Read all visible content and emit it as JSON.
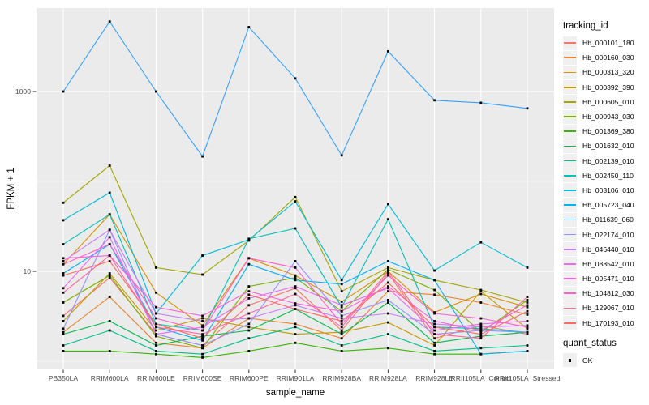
{
  "legend": {
    "tracking_title": "tracking_id",
    "quant_title": "quant_status",
    "quant_entries": [
      {
        "label": "OK"
      }
    ]
  },
  "colors": {
    "panel_background": "#EBEBEB",
    "gridline": "#FFFFFF",
    "tick_label": "#4D4D4D",
    "tick_mark": "#333333",
    "point": "#000000",
    "legend_key_background": "#F0F0F0"
  },
  "chart_data": {
    "type": "line",
    "title": "",
    "xlabel": "sample_name",
    "ylabel": "FPKM + 1",
    "y_scale": "log10",
    "grid": true,
    "legend_position": "right",
    "y_ticks": [
      1000,
      10
    ],
    "y_tick_labels": [
      "1000",
      "10"
    ],
    "y_minor_gridlines": [
      100,
      1
    ],
    "ylim": [
      0.85,
      8500
    ],
    "point_shape": "filled-black-square",
    "categories": [
      "PB350LA",
      "RRIM600LA",
      "RRIM600LE",
      "RRIM600SE",
      "RRIM600PE",
      "RRIM901LA",
      "RRIM928BA",
      "RRIM928LA",
      "RRIM928LE",
      "RRII105LA_Control",
      "RRII105LA_Stressed"
    ],
    "series": [
      {
        "name": "Hb_000101_180",
        "color": "#F8766D",
        "values": [
          3.2,
          8.5,
          2.0,
          1.5,
          4.2,
          6.5,
          2.2,
          9.5,
          1.8,
          2.5,
          2.0
        ]
      },
      {
        "name": "Hb_000160_030",
        "color": "#EA8331",
        "values": [
          2.1,
          5.2,
          1.6,
          1.4,
          3.0,
          2.6,
          1.8,
          6.0,
          5.5,
          4.5,
          3.3
        ]
      },
      {
        "name": "Hb_000313_320",
        "color": "#D89000",
        "values": [
          12,
          43,
          5.8,
          2.5,
          14,
          9.0,
          4.6,
          10,
          3.5,
          5.6,
          4.0
        ]
      },
      {
        "name": "Hb_000392_390",
        "color": "#C09B00",
        "values": [
          2.8,
          9.5,
          2.2,
          3.0,
          2.4,
          2.0,
          2.1,
          2.7,
          1.5,
          6.0,
          2.3
        ]
      },
      {
        "name": "Hb_000605_010",
        "color": "#A3A500",
        "values": [
          58,
          150,
          11,
          9.2,
          22,
          67,
          6.0,
          11,
          8.0,
          6.2,
          4.5
        ]
      },
      {
        "name": "Hb_000943_030",
        "color": "#7CAE00",
        "values": [
          4.5,
          9.0,
          1.9,
          1.4,
          6.8,
          8.5,
          3.6,
          10.5,
          6.2,
          2.1,
          4.8
        ]
      },
      {
        "name": "Hb_001369_380",
        "color": "#39B600",
        "values": [
          1.3,
          1.3,
          1.2,
          1.1,
          1.3,
          1.6,
          1.3,
          1.4,
          1.2,
          1.2,
          1.3
        ]
      },
      {
        "name": "Hb_001632_010",
        "color": "#00BB4E",
        "values": [
          2.0,
          2.8,
          1.5,
          1.9,
          2.2,
          3.8,
          2.0,
          4.5,
          1.6,
          1.9,
          2.1
        ]
      },
      {
        "name": "Hb_002139_010",
        "color": "#00C087",
        "values": [
          1.5,
          2.2,
          1.3,
          1.2,
          1.8,
          2.4,
          1.5,
          2.0,
          1.3,
          1.4,
          1.5
        ]
      },
      {
        "name": "Hb_002450_110",
        "color": "#00C0B8",
        "values": [
          20,
          43,
          2.6,
          2.2,
          23,
          30,
          4.0,
          38,
          2.4,
          2.3,
          2.1
        ]
      },
      {
        "name": "Hb_003106_010",
        "color": "#00BCD8",
        "values": [
          37,
          75,
          3.4,
          15,
          22.5,
          60,
          8.0,
          56,
          10.2,
          21,
          11
        ]
      },
      {
        "name": "Hb_005723_040",
        "color": "#00B0F6",
        "values": [
          9.5,
          20,
          2.4,
          1.7,
          12,
          8.0,
          7.2,
          13,
          8.0,
          1.2,
          1.3
        ]
      },
      {
        "name": "Hb_011639_060",
        "color": "#35A2FF",
        "values": [
          1000,
          6000,
          1000,
          190,
          5200,
          1400,
          195,
          2800,
          800,
          750,
          650
        ]
      },
      {
        "name": "Hb_022174_010",
        "color": "#9590FF",
        "values": [
          2.3,
          29,
          2.0,
          1.5,
          2.6,
          13,
          3.2,
          4.8,
          2.0,
          2.2,
          2.1
        ]
      },
      {
        "name": "Hb_046440_010",
        "color": "#C77CFF",
        "values": [
          13,
          29,
          3.4,
          2.8,
          3.0,
          4.2,
          3.0,
          3.4,
          2.6,
          2.4,
          2.5
        ]
      },
      {
        "name": "Hb_088542_010",
        "color": "#E76BF3",
        "values": [
          6.5,
          24,
          2.0,
          2.4,
          5.0,
          6.8,
          4.2,
          6.5,
          2.2,
          2.6,
          2.8
        ]
      },
      {
        "name": "Hb_095471_010",
        "color": "#FA62DB",
        "values": [
          14,
          15,
          4.0,
          3.2,
          6.0,
          4.4,
          3.6,
          6.8,
          2.8,
          2.2,
          4.2
        ]
      },
      {
        "name": "Hb_104812_030",
        "color": "#FF61C9",
        "values": [
          12,
          20,
          3.0,
          2.2,
          14,
          11,
          2.6,
          9.0,
          3.4,
          3.0,
          2.4
        ]
      },
      {
        "name": "Hb_129067_010",
        "color": "#FF68A1",
        "values": [
          5.8,
          15,
          2.4,
          2.0,
          3.4,
          5.6,
          2.4,
          10,
          2.0,
          1.8,
          5.2
        ]
      },
      {
        "name": "Hb_170193_010",
        "color": "#FF6C67",
        "values": [
          9.0,
          13,
          2.6,
          1.8,
          5.5,
          3.8,
          2.8,
          7.5,
          2.4,
          2.0,
          3.6
        ]
      }
    ]
  }
}
